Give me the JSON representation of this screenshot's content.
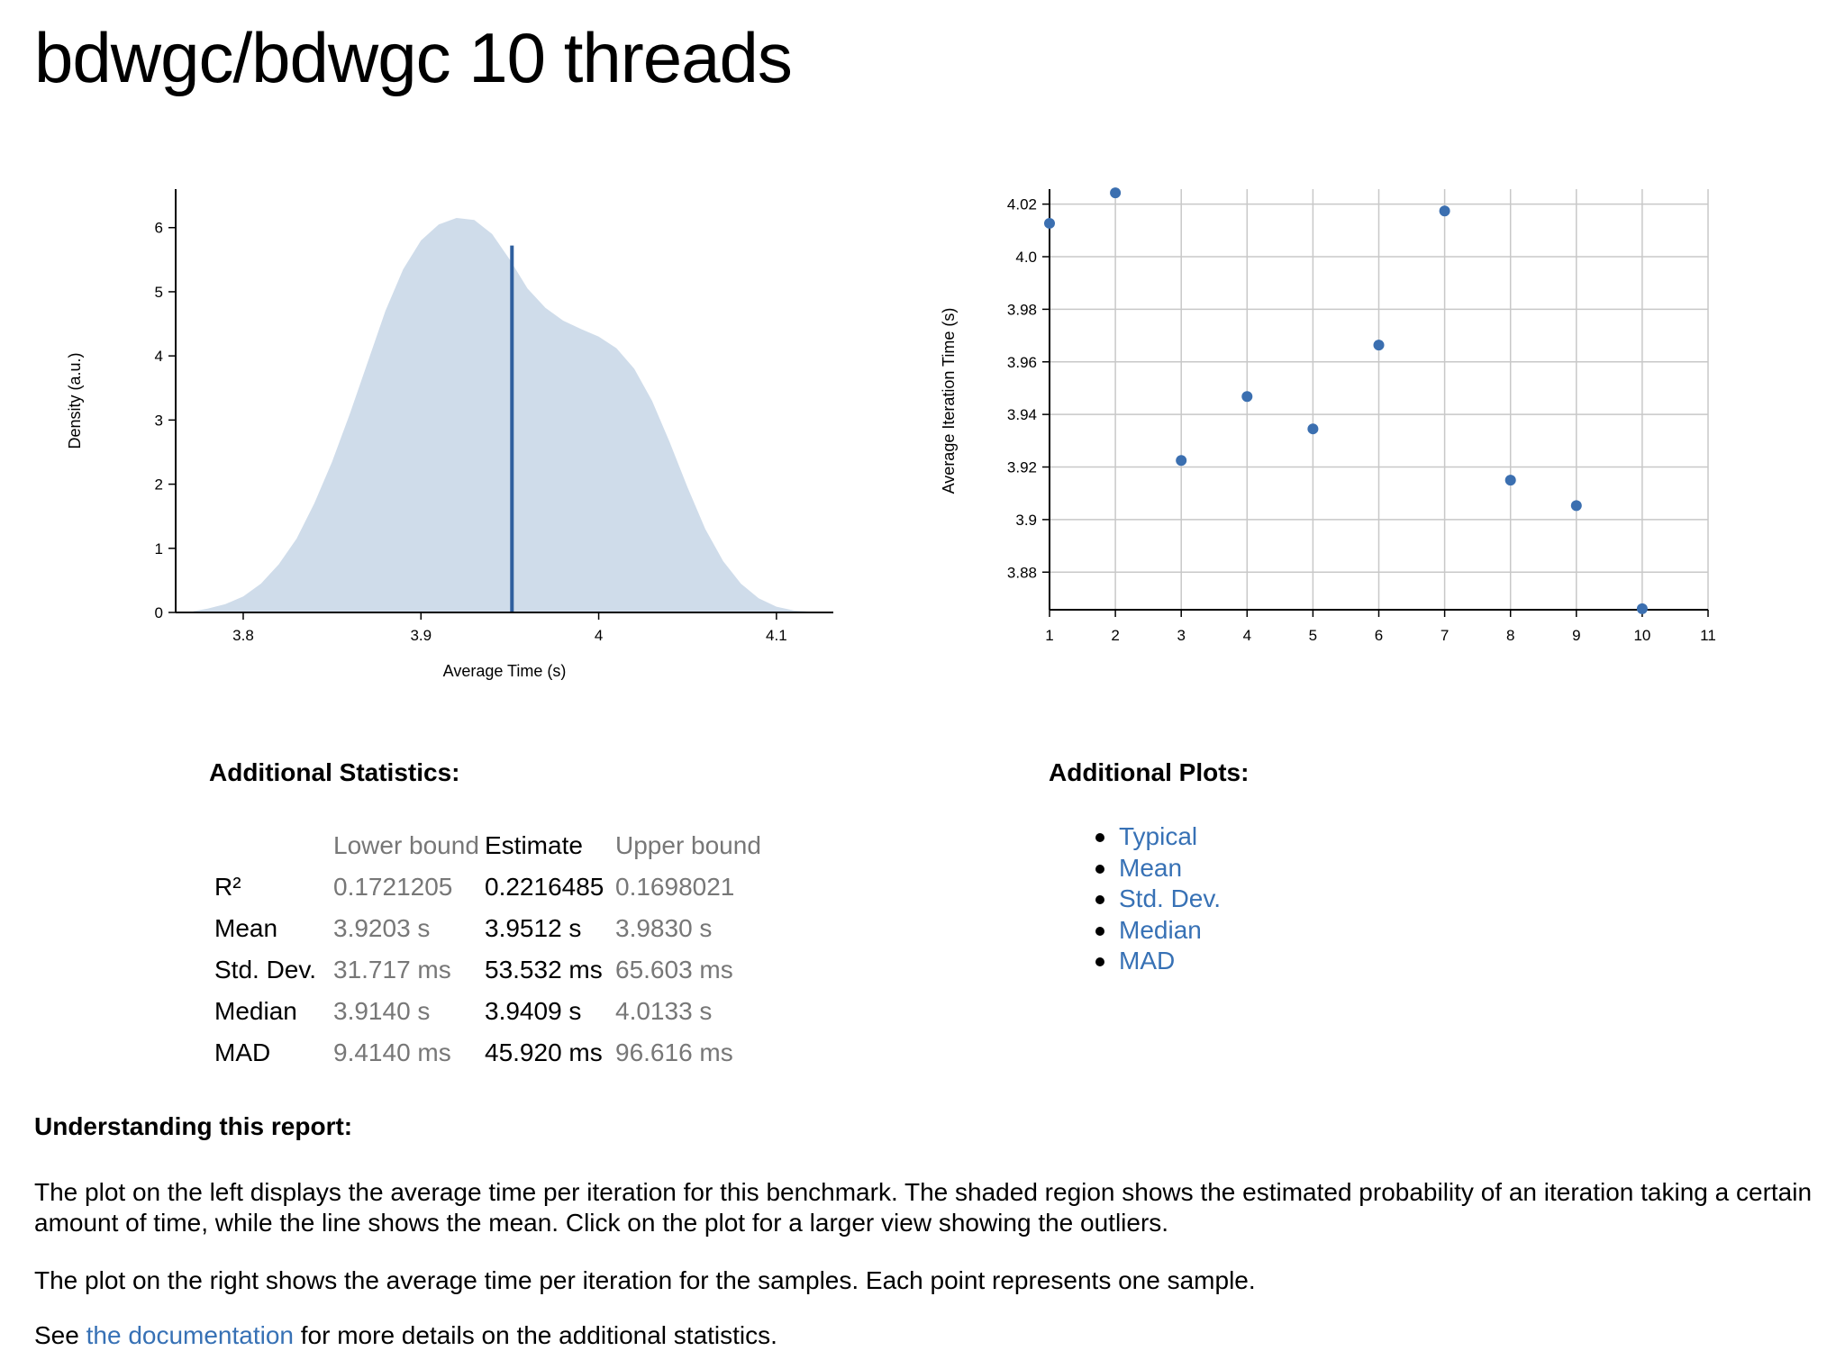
{
  "page": {
    "title": "bdwgc/bdwgc 10 threads"
  },
  "colors": {
    "accent": "#3771b5",
    "density_fill": "#cfdcea",
    "point": "#3b6fb0",
    "muted": "#777777"
  },
  "chart_data": [
    {
      "type": "area",
      "xlabel": "Average Time (s)",
      "ylabel": "Density (a.u.)",
      "xlim": [
        3.762,
        4.132
      ],
      "ylim": [
        0,
        6.6
      ],
      "xticks": [
        "3.8",
        "3.9",
        "4",
        "4.1"
      ],
      "xtick_values": [
        3.8,
        3.9,
        4.0,
        4.1
      ],
      "yticks": [
        "0",
        "1",
        "2",
        "3",
        "4",
        "5",
        "6"
      ],
      "ytick_values": [
        0,
        1,
        2,
        3,
        4,
        5,
        6
      ],
      "x": [
        3.772,
        3.78,
        3.79,
        3.8,
        3.81,
        3.82,
        3.83,
        3.84,
        3.85,
        3.86,
        3.87,
        3.88,
        3.89,
        3.9,
        3.91,
        3.92,
        3.93,
        3.94,
        3.95,
        3.96,
        3.97,
        3.98,
        3.99,
        4.0,
        4.01,
        4.02,
        4.03,
        4.04,
        4.05,
        4.06,
        4.07,
        4.08,
        4.09,
        4.1,
        4.11,
        4.12
      ],
      "y": [
        0.02,
        0.06,
        0.13,
        0.25,
        0.45,
        0.75,
        1.15,
        1.7,
        2.35,
        3.1,
        3.9,
        4.7,
        5.35,
        5.8,
        6.05,
        6.15,
        6.12,
        5.9,
        5.5,
        5.05,
        4.75,
        4.55,
        4.42,
        4.3,
        4.12,
        3.8,
        3.3,
        2.65,
        1.95,
        1.3,
        0.8,
        0.45,
        0.22,
        0.09,
        0.03,
        0.01
      ],
      "mean": {
        "x": 3.9512,
        "y": 5.72
      },
      "grid": false
    },
    {
      "type": "scatter",
      "xlabel": "",
      "ylabel": "Average Iteration Time (s)",
      "xlim": [
        1,
        11
      ],
      "ylim": [
        3.8657,
        4.0257
      ],
      "xticks": [
        "1",
        "2",
        "3",
        "4",
        "5",
        "6",
        "7",
        "8",
        "9",
        "10",
        "11"
      ],
      "xtick_values": [
        1,
        2,
        3,
        4,
        5,
        6,
        7,
        8,
        9,
        10,
        11
      ],
      "yticks": [
        "3.88",
        "3.9",
        "3.92",
        "3.94",
        "3.96",
        "3.98",
        "4.0",
        "4.02"
      ],
      "ytick_values": [
        3.88,
        3.9,
        3.92,
        3.94,
        3.96,
        3.98,
        4.0,
        4.02
      ],
      "x": [
        1,
        2,
        3,
        4,
        5,
        6,
        7,
        8,
        9,
        10
      ],
      "y": [
        4.0127,
        4.0243,
        3.9225,
        3.9468,
        3.9345,
        3.9664,
        4.0174,
        3.915,
        3.9053,
        3.8661
      ],
      "grid": true
    }
  ],
  "stats": {
    "heading": "Additional Statistics:",
    "headers": {
      "blank": "",
      "lower": "Lower bound",
      "estimate": "Estimate",
      "upper": "Upper bound"
    },
    "rows": [
      {
        "label": "R²",
        "lower": "0.1721205",
        "estimate": "0.2216485",
        "upper": "0.1698021"
      },
      {
        "label": "Mean",
        "lower": "3.9203 s",
        "estimate": "3.9512 s",
        "upper": "3.9830 s"
      },
      {
        "label": "Std. Dev.",
        "lower": "31.717 ms",
        "estimate": "53.532 ms",
        "upper": "65.603 ms"
      },
      {
        "label": "Median",
        "lower": "3.9140 s",
        "estimate": "3.9409 s",
        "upper": "4.0133 s"
      },
      {
        "label": "MAD",
        "lower": "9.4140 ms",
        "estimate": "45.920 ms",
        "upper": "96.616 ms"
      }
    ]
  },
  "plots": {
    "heading": "Additional Plots:",
    "links": [
      "Typical",
      "Mean",
      "Std. Dev.",
      "Median",
      "MAD"
    ]
  },
  "understanding": {
    "heading": "Understanding this report:",
    "para1": "The plot on the left displays the average time per iteration for this benchmark. The shaded region shows the estimated probability of an iteration taking a certain amount of time, while the line shows the mean. Click on the plot for a larger view showing the outliers.",
    "para2": "The plot on the right shows the average time per iteration for the samples. Each point represents one sample.",
    "para3_before": "See ",
    "para3_link": "the documentation",
    "para3_after": " for more details on the additional statistics."
  }
}
